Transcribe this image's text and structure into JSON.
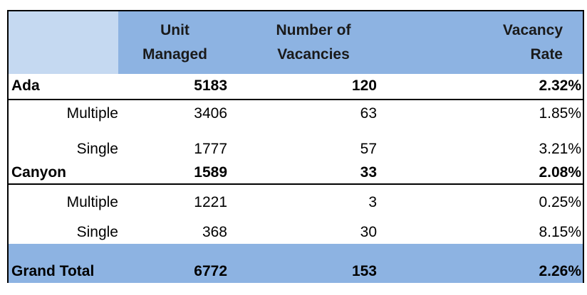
{
  "table": {
    "headers": {
      "unit_line1": "Unit",
      "unit_line2": "Managed",
      "vac_line1": "Number of",
      "vac_line2": "Vacancies",
      "rate_line1": "Vacancy",
      "rate_line2": "Rate"
    },
    "rows": [
      {
        "label": "Ada",
        "units": "5183",
        "vacancies": "120",
        "rate": "2.32%"
      },
      {
        "label": "Multiple",
        "units": "3406",
        "vacancies": "63",
        "rate": "1.85%"
      },
      {
        "label": "Single",
        "units": "1777",
        "vacancies": "57",
        "rate": "3.21%"
      },
      {
        "label": "Canyon",
        "units": "1589",
        "vacancies": "33",
        "rate": "2.08%"
      },
      {
        "label": "Multiple",
        "units": "1221",
        "vacancies": "3",
        "rate": "0.25%"
      },
      {
        "label": "Single",
        "units": "368",
        "vacancies": "30",
        "rate": "8.15%"
      }
    ],
    "total": {
      "label": "Grand Total",
      "units": "6772",
      "vacancies": "153",
      "rate": "2.26%"
    }
  }
}
